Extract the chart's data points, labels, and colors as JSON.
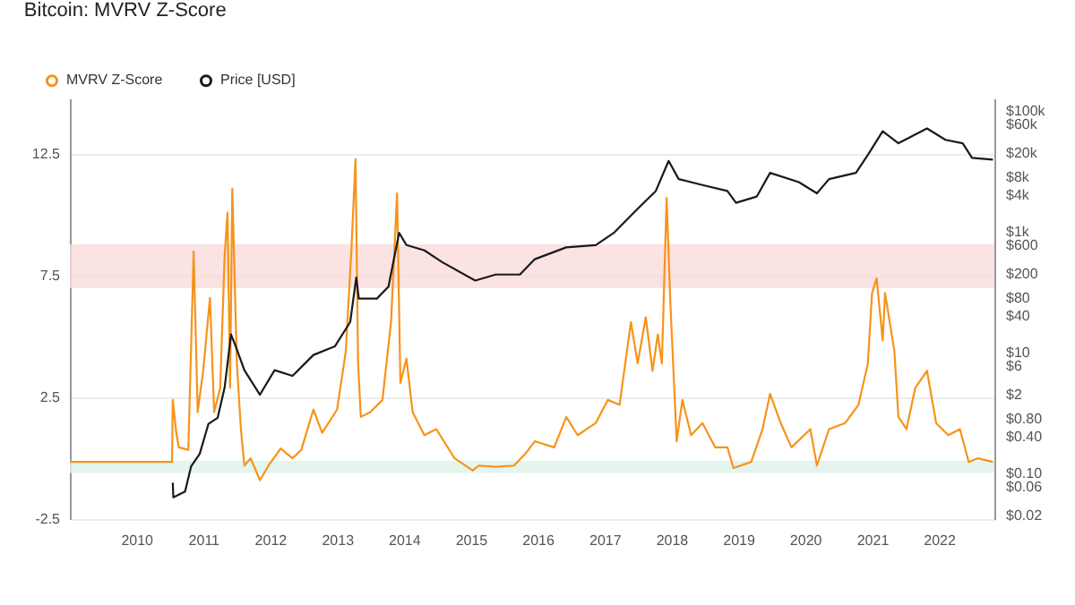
{
  "chart_data": {
    "type": "line",
    "title": "Bitcoin: MVRV Z-Score",
    "xlim": [
      "2009-01-03",
      "2022-10-31"
    ],
    "xticks": [
      "2010",
      "2011",
      "2012",
      "2013",
      "2014",
      "2015",
      "2016",
      "2017",
      "2018",
      "2019",
      "2020",
      "2021",
      "2022"
    ],
    "ylim": [
      -2.5,
      14.8
    ],
    "yticks": [
      -2.5,
      2.5,
      7.5,
      12.5
    ],
    "y2lim": [
      0.0175,
      160000
    ],
    "y2ticks": [
      {
        "value": 100000,
        "label": "$100k"
      },
      {
        "value": 60000,
        "label": "$60k"
      },
      {
        "value": 20000,
        "label": "$20k"
      },
      {
        "value": 8000,
        "label": "$8k"
      },
      {
        "value": 4000,
        "label": "$4k"
      },
      {
        "value": 1000,
        "label": "$1k"
      },
      {
        "value": 600,
        "label": "$600"
      },
      {
        "value": 200,
        "label": "$200"
      },
      {
        "value": 80,
        "label": "$80"
      },
      {
        "value": 40,
        "label": "$40"
      },
      {
        "value": 10,
        "label": "$10"
      },
      {
        "value": 6,
        "label": "$6"
      },
      {
        "value": 2,
        "label": "$2"
      },
      {
        "value": 0.8,
        "label": "$0.80"
      },
      {
        "value": 0.4,
        "label": "$0.40"
      },
      {
        "value": 0.1,
        "label": "$0.10"
      },
      {
        "value": 0.06,
        "label": "$0.06"
      },
      {
        "value": 0.02,
        "label": "$0.02"
      }
    ],
    "log": "y2",
    "grid": "y",
    "legend": "top left",
    "bands": [
      {
        "axis": "y",
        "from": 7,
        "to": 8.8,
        "color": "#fadcdc"
      },
      {
        "axis": "y",
        "from": -0.6,
        "to": -0.1,
        "color": "#dcf2e8"
      }
    ],
    "series": [
      {
        "name": "MVRV Z-Score",
        "color": "#f7931a",
        "x": [
          "2009-01-03",
          "2010-07-15",
          "2010-07-19",
          "2010-08-07",
          "2010-08-21",
          "2010-10-12",
          "2010-11-10",
          "2010-12-02",
          "2011-01-01",
          "2011-02-07",
          "2011-03-02",
          "2011-04-04",
          "2011-04-28",
          "2011-05-14",
          "2011-05-28",
          "2011-06-09",
          "2011-07-04",
          "2011-07-26",
          "2011-08-14",
          "2011-09-17",
          "2011-11-07",
          "2011-12-24",
          "2012-02-28",
          "2012-05-03",
          "2012-06-20",
          "2012-08-25",
          "2012-10-12",
          "2013-01-01",
          "2013-02-18",
          "2013-03-20",
          "2013-04-12",
          "2013-04-26",
          "2013-05-11",
          "2013-07-01",
          "2013-09-06",
          "2013-10-23",
          "2013-11-25",
          "2013-12-13",
          "2014-01-15",
          "2014-02-18",
          "2014-04-23",
          "2014-06-27",
          "2014-10-05",
          "2015-01-12",
          "2015-02-14",
          "2015-05-18",
          "2015-08-25",
          "2015-10-28",
          "2015-12-17",
          "2016-04-01",
          "2016-06-06",
          "2016-08-07",
          "2016-11-14",
          "2017-01-19",
          "2017-03-24",
          "2017-05-25",
          "2017-07-01",
          "2017-08-14",
          "2017-09-20",
          "2017-10-19",
          "2017-11-10",
          "2017-12-06",
          "2017-12-27",
          "2018-01-30",
          "2018-03-02",
          "2018-04-19",
          "2018-06-20",
          "2018-08-28",
          "2018-11-03",
          "2018-12-06",
          "2019-03-13",
          "2019-05-14",
          "2019-06-24",
          "2019-08-21",
          "2019-10-19",
          "2020-01-30",
          "2020-03-06",
          "2020-05-11",
          "2020-08-07",
          "2020-10-19",
          "2020-12-09",
          "2021-01-01",
          "2021-01-26",
          "2021-02-28",
          "2021-03-13",
          "2021-05-03",
          "2021-05-25",
          "2021-07-08",
          "2021-08-25",
          "2021-10-28",
          "2021-12-17",
          "2022-02-21",
          "2022-04-26",
          "2022-06-13",
          "2022-08-03",
          "2022-10-23"
        ],
        "values": [
          -0.15,
          -0.15,
          2.4,
          1.05,
          0.45,
          0.35,
          8.5,
          1.9,
          3.6,
          6.6,
          1.9,
          2.9,
          8.3,
          10.1,
          2.9,
          11.1,
          3.9,
          1.2,
          -0.3,
          0,
          -0.9,
          -0.3,
          0.4,
          0,
          0.35,
          2.0,
          1.05,
          2.0,
          4.4,
          8.5,
          12.3,
          3.9,
          1.7,
          1.9,
          2.4,
          5.6,
          10.9,
          3.1,
          4.1,
          1.9,
          0.95,
          1.2,
          0,
          -0.5,
          -0.3,
          -0.35,
          -0.3,
          0.2,
          0.7,
          0.45,
          1.7,
          0.95,
          1.45,
          2.4,
          2.2,
          5.6,
          3.9,
          5.8,
          3.6,
          5.1,
          3.9,
          10.7,
          6.3,
          0.7,
          2.4,
          0.95,
          1.45,
          0.45,
          0.45,
          -0.4,
          -0.15,
          1.2,
          2.65,
          1.45,
          0.45,
          1.2,
          -0.3,
          1.2,
          1.45,
          2.2,
          3.9,
          6.8,
          7.4,
          4.85,
          6.8,
          4.4,
          1.7,
          1.2,
          2.9,
          3.6,
          1.45,
          0.95,
          1.2,
          -0.15,
          0,
          -0.15
        ]
      },
      {
        "name": "Price [USD]",
        "axis": "y2",
        "color": "#1a1a1a",
        "x": [
          "2010-07-19",
          "2010-07-22",
          "2010-09-24",
          "2010-10-27",
          "2010-12-13",
          "2011-01-30",
          "2011-03-21",
          "2011-04-28",
          "2011-06-02",
          "2011-06-28",
          "2011-08-14",
          "2011-11-07",
          "2012-01-26",
          "2012-05-03",
          "2012-08-25",
          "2012-12-20",
          "2013-03-14",
          "2013-04-16",
          "2013-04-30",
          "2013-08-07",
          "2013-10-09",
          "2013-12-06",
          "2014-01-15",
          "2014-04-23",
          "2014-07-31",
          "2015-01-26",
          "2015-05-18",
          "2015-09-27",
          "2015-12-17",
          "2016-06-06",
          "2016-11-14",
          "2017-02-21",
          "2017-07-01",
          "2017-10-08",
          "2017-12-17",
          "2018-02-10",
          "2018-06-20",
          "2018-11-03",
          "2018-12-20",
          "2019-04-12",
          "2019-06-24",
          "2019-11-28",
          "2020-03-06",
          "2020-05-11",
          "2020-10-05",
          "2020-12-09",
          "2021-02-28",
          "2021-05-25",
          "2021-10-28",
          "2022-02-06",
          "2022-05-11",
          "2022-07-01",
          "2022-10-23"
        ],
        "values": [
          0.07,
          0.04,
          0.05,
          0.13,
          0.21,
          0.66,
          0.83,
          2.6,
          20,
          12.6,
          5.1,
          2.0,
          5.1,
          4.1,
          9.1,
          12.6,
          32,
          174,
          78,
          78,
          123,
          955,
          600,
          490,
          310,
          155,
          195,
          195,
          350,
          550,
          600,
          955,
          2400,
          4700,
          14800,
          7400,
          5900,
          4700,
          3000,
          3800,
          9400,
          6600,
          4300,
          7400,
          9400,
          18600,
          46000,
          29000,
          51000,
          33000,
          29000,
          16600,
          15500
        ]
      }
    ]
  }
}
